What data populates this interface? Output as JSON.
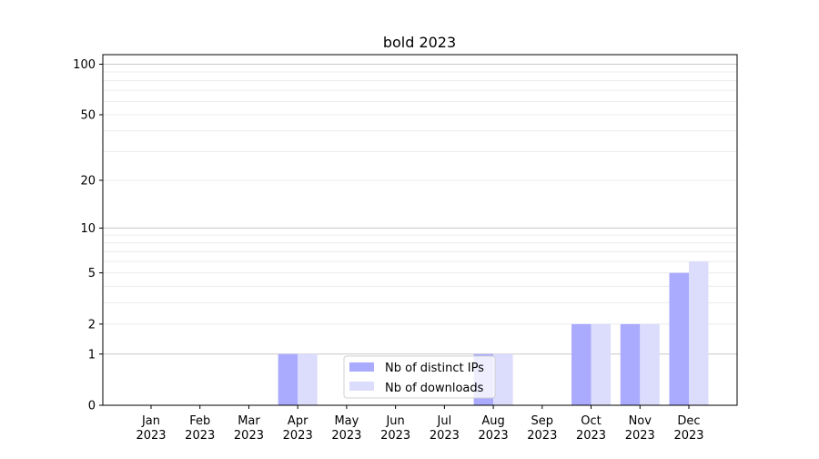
{
  "chart_data": {
    "type": "bar",
    "title": "bold 2023",
    "xlabel": "",
    "ylabel": "",
    "y_scale": "log(1+x)",
    "ylim": [
      0,
      114
    ],
    "y_ticks": [
      0,
      1,
      2,
      5,
      10,
      20,
      50,
      100
    ],
    "y_tick_labels": [
      "0",
      "1",
      "2",
      "5",
      "10",
      "20",
      "50",
      "100"
    ],
    "grid": "horizontal major and minor",
    "legend_position": "bottom-center",
    "categories": [
      "Jan\n2023",
      "Feb\n2023",
      "Mar\n2023",
      "Apr\n2023",
      "May\n2023",
      "Jun\n2023",
      "Jul\n2023",
      "Aug\n2023",
      "Sep\n2023",
      "Oct\n2023",
      "Nov\n2023",
      "Dec\n2023"
    ],
    "series": [
      {
        "name": "Nb of distinct IPs",
        "color": "#aaaaff",
        "values": [
          0,
          0,
          0,
          1,
          0,
          0,
          0,
          1,
          0,
          2,
          2,
          5
        ]
      },
      {
        "name": "Nb of downloads",
        "color": "#dcdcfc",
        "values": [
          0,
          0,
          0,
          1,
          0,
          0,
          0,
          1,
          0,
          2,
          2,
          6
        ]
      }
    ]
  }
}
